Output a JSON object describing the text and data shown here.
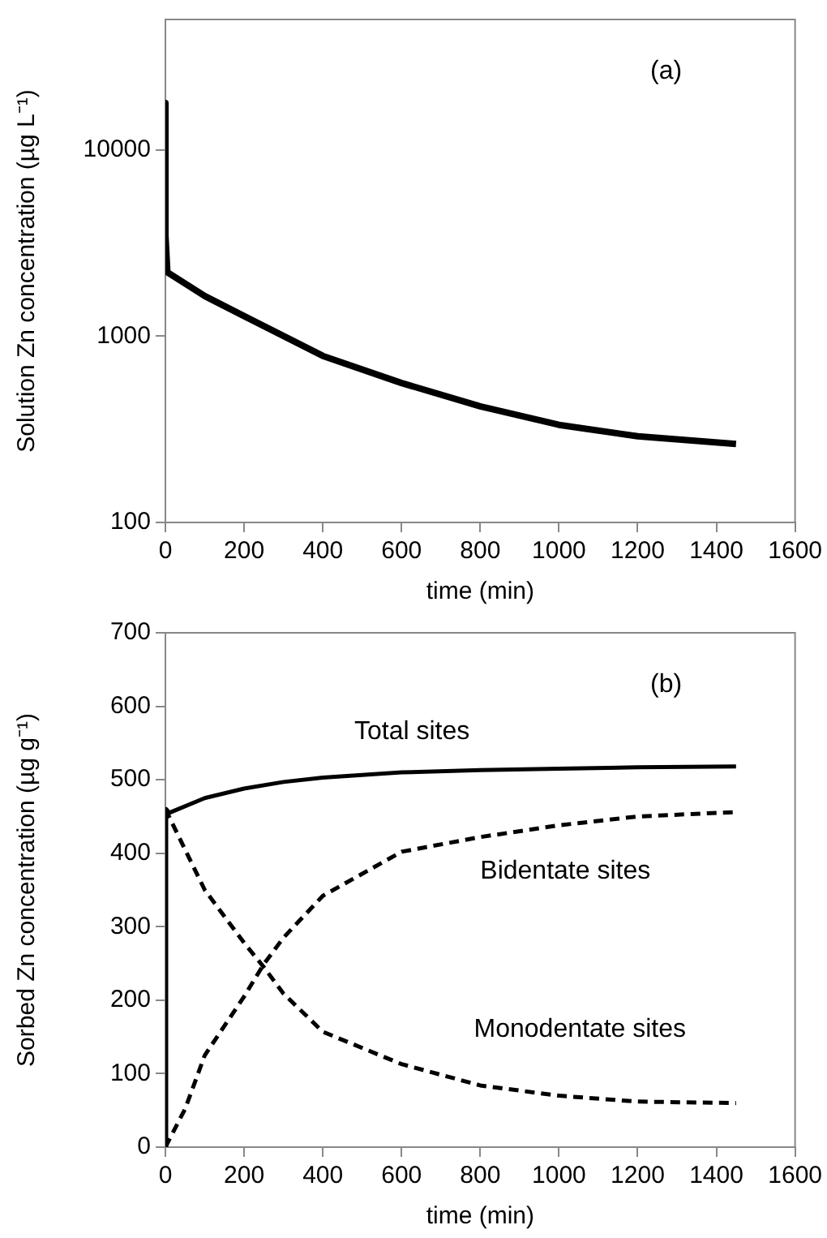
{
  "chart_data": [
    {
      "type": "line",
      "xlabel": "time (min)",
      "ylabel": "Solution Zn concentration (µg L⁻¹)",
      "log": "y",
      "xlim": [
        0,
        1600
      ],
      "xticks": [
        0,
        200,
        400,
        600,
        800,
        1000,
        1200,
        1400,
        1600
      ],
      "ylim": [
        100,
        50000
      ],
      "yticks": [
        100,
        1000,
        10000
      ],
      "grid": false,
      "legend": false,
      "marker": "none",
      "annotations": [
        "(a)"
      ],
      "series": [
        {
          "color": "#000000",
          "line_style": "solid",
          "x": [
            0,
            0,
            5,
            100,
            200,
            400,
            600,
            800,
            1000,
            1200,
            1450
          ],
          "values": [
            17800,
            3500,
            2200,
            1640,
            1280,
            783,
            560,
            420,
            334,
            290,
            264
          ]
        }
      ]
    },
    {
      "type": "line",
      "xlabel": "time (min)",
      "ylabel": "Sorbed Zn concentration (µg g⁻¹)",
      "xlim": [
        0,
        1600
      ],
      "xticks": [
        0,
        200,
        400,
        600,
        800,
        1000,
        1200,
        1400,
        1600
      ],
      "ylim": [
        0,
        700
      ],
      "yticks": [
        0,
        100,
        200,
        300,
        400,
        500,
        600,
        700
      ],
      "grid": false,
      "legend": false,
      "marker": "none",
      "annotations": [
        "(b)"
      ],
      "series": [
        {
          "name": "Total sites",
          "color": "#000000",
          "line_style": "solid",
          "x": [
            0,
            2,
            10,
            100,
            200,
            300,
            400,
            600,
            800,
            1000,
            1200,
            1450
          ],
          "values": [
            0,
            460,
            455,
            475,
            488,
            497,
            503,
            510,
            513,
            515,
            517,
            518
          ]
        },
        {
          "name": "Bidentate sites",
          "color": "#000000",
          "line_style": "dashed",
          "x": [
            0,
            50,
            100,
            200,
            250,
            300,
            400,
            600,
            800,
            1000,
            1200,
            1450
          ],
          "values": [
            0,
            52,
            125,
            205,
            249,
            285,
            342,
            402,
            422,
            438,
            450,
            456
          ]
        },
        {
          "name": "Monodentate sites",
          "color": "#000000",
          "line_style": "dashed",
          "x": [
            0,
            100,
            200,
            250,
            300,
            400,
            600,
            800,
            1000,
            1200,
            1450
          ],
          "values": [
            460,
            350,
            278,
            245,
            209,
            157,
            113,
            84,
            70,
            62,
            60
          ]
        }
      ]
    }
  ]
}
